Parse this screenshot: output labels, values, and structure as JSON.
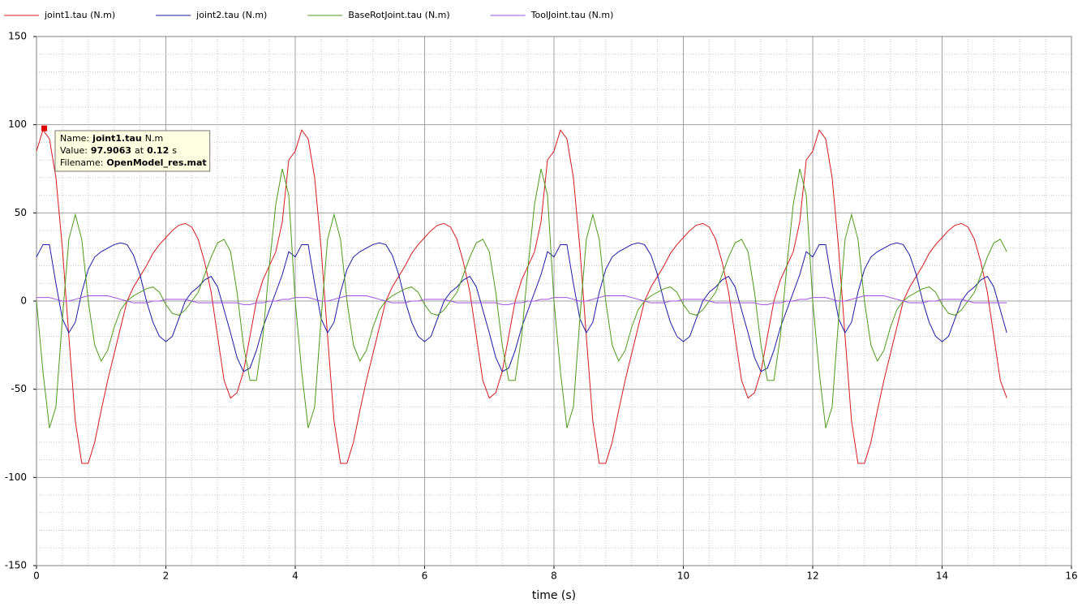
{
  "chart_data": {
    "type": "line",
    "xlabel": "time (s)",
    "xlim": [
      0,
      16
    ],
    "xticks": [
      0,
      2,
      4,
      6,
      8,
      10,
      12,
      14,
      16
    ],
    "ylim": [
      -150,
      150
    ],
    "yticks": [
      -150,
      -100,
      -50,
      0,
      50,
      100,
      150
    ],
    "grid": true,
    "minor_grid_divisions": 5,
    "legend": "top-left",
    "x": [
      0,
      0.1,
      0.2,
      0.3,
      0.4,
      0.5,
      0.6,
      0.7,
      0.8,
      0.9,
      1,
      1.1,
      1.2,
      1.3,
      1.4,
      1.5,
      1.6,
      1.7,
      1.8,
      1.9,
      2,
      2.1,
      2.2,
      2.3,
      2.4,
      2.5,
      2.6,
      2.7,
      2.8,
      2.9,
      3,
      3.1,
      3.2,
      3.3,
      3.4,
      3.5,
      3.6,
      3.7,
      3.8,
      3.9,
      4,
      4.1,
      4.2,
      4.3,
      4.4,
      4.5,
      4.6,
      4.7,
      4.8,
      4.9,
      5,
      5.1,
      5.2,
      5.3,
      5.4,
      5.5,
      5.6,
      5.7,
      5.8,
      5.9,
      6,
      6.1,
      6.2,
      6.3,
      6.4,
      6.5,
      6.6,
      6.7,
      6.8,
      6.9,
      7,
      7.1,
      7.2,
      7.3,
      7.4,
      7.5,
      7.6,
      7.7,
      7.8,
      7.9,
      8,
      8.1,
      8.2,
      8.3,
      8.4,
      8.5,
      8.6,
      8.7,
      8.8,
      8.9,
      9,
      9.1,
      9.2,
      9.3,
      9.4,
      9.5,
      9.6,
      9.7,
      9.8,
      9.9,
      10,
      10.1,
      10.2,
      10.3,
      10.4,
      10.5,
      10.6,
      10.7,
      10.8,
      10.9,
      11,
      11.1,
      11.2,
      11.3,
      11.4,
      11.5,
      11.6,
      11.7,
      11.8,
      11.9,
      12,
      12.1,
      12.2,
      12.3,
      12.4,
      12.5,
      12.6,
      12.7,
      12.8,
      12.9,
      13,
      13.1,
      13.2,
      13.3,
      13.4,
      13.5,
      13.6,
      13.7,
      13.8,
      13.9,
      14,
      14.1,
      14.2,
      14.3,
      14.4,
      14.5,
      14.6,
      14.7,
      14.8,
      14.9,
      15
    ],
    "series": [
      {
        "name": "joint1.tau (N.m)",
        "color": "#d7191c",
        "values": [
          85,
          97,
          92,
          70,
          30,
          -20,
          -68,
          -92,
          -92,
          -80,
          -62,
          -45,
          -30,
          -15,
          0,
          8,
          14,
          20,
          27,
          32,
          36,
          40,
          43,
          44,
          42,
          35,
          22,
          5,
          -20,
          -45,
          -55,
          -52,
          -40,
          -20,
          0,
          12,
          20,
          28,
          45,
          80,
          85,
          97,
          92,
          70,
          30,
          -20,
          -68,
          -92,
          -92,
          -80,
          -62,
          -45,
          -30,
          -15,
          0,
          8,
          14,
          20,
          27,
          32,
          36,
          40,
          43,
          44,
          42,
          35,
          22,
          5,
          -20,
          -45,
          -55,
          -52,
          -40,
          -20,
          0,
          12,
          20,
          28,
          45,
          80,
          85,
          97,
          92,
          70,
          30,
          -20,
          -68,
          -92,
          -92,
          -80,
          -62,
          -45,
          -30,
          -15,
          0,
          8,
          14,
          20,
          27,
          32,
          36,
          40,
          43,
          44,
          42,
          35,
          22,
          5,
          -20,
          -45,
          -55,
          -52,
          -40,
          -20,
          0,
          12,
          20,
          28,
          45,
          80,
          85,
          97,
          92,
          70,
          30,
          -20,
          -68,
          -92,
          -92,
          -80,
          -62,
          -45,
          -30,
          -15,
          0,
          8,
          14,
          20,
          27,
          32,
          36,
          40,
          43,
          44,
          42,
          35,
          22,
          5,
          -20,
          -45,
          -55
        ]
      },
      {
        "name": "joint2.tau (N.m)",
        "color": "#1a1aa6",
        "values": [
          25,
          32,
          32,
          10,
          -10,
          -18,
          -12,
          5,
          18,
          25,
          28,
          30,
          32,
          33,
          32,
          26,
          15,
          0,
          -12,
          -20,
          -23,
          -20,
          -10,
          0,
          5,
          8,
          12,
          14,
          8,
          -5,
          -18,
          -32,
          -40,
          -38,
          -28,
          -15,
          -5,
          5,
          15,
          28,
          25,
          32,
          32,
          10,
          -10,
          -18,
          -12,
          5,
          18,
          25,
          28,
          30,
          32,
          33,
          32,
          26,
          15,
          0,
          -12,
          -20,
          -23,
          -20,
          -10,
          0,
          5,
          8,
          12,
          14,
          8,
          -5,
          -18,
          -32,
          -40,
          -38,
          -28,
          -15,
          -5,
          5,
          15,
          28,
          25,
          32,
          32,
          10,
          -10,
          -18,
          -12,
          5,
          18,
          25,
          28,
          30,
          32,
          33,
          32,
          26,
          15,
          0,
          -12,
          -20,
          -23,
          -20,
          -10,
          0,
          5,
          8,
          12,
          14,
          8,
          -5,
          -18,
          -32,
          -40,
          -38,
          -28,
          -15,
          -5,
          5,
          15,
          28,
          25,
          32,
          32,
          10,
          -10,
          -18,
          -12,
          5,
          18,
          25,
          28,
          30,
          32,
          33,
          32,
          26,
          15,
          0,
          -12,
          -20,
          -23,
          -20,
          -10,
          0,
          5,
          8,
          12,
          14,
          8,
          -5,
          -18
        ]
      },
      {
        "name": "BaseRotJoint.tau (N.m)",
        "color": "#4d9a1a",
        "values": [
          0,
          -40,
          -72,
          -60,
          -10,
          35,
          49,
          35,
          0,
          -25,
          -34,
          -28,
          -15,
          -5,
          0,
          3,
          5,
          7,
          8,
          5,
          -2,
          -7,
          -8,
          -5,
          0,
          5,
          15,
          25,
          33,
          35,
          28,
          5,
          -25,
          -45,
          -45,
          -20,
          20,
          55,
          75,
          60,
          0,
          -40,
          -72,
          -60,
          -10,
          35,
          49,
          35,
          0,
          -25,
          -34,
          -28,
          -15,
          -5,
          0,
          3,
          5,
          7,
          8,
          5,
          -2,
          -7,
          -8,
          -5,
          0,
          5,
          15,
          25,
          33,
          35,
          28,
          5,
          -25,
          -45,
          -45,
          -20,
          20,
          55,
          75,
          60,
          0,
          -40,
          -72,
          -60,
          -10,
          35,
          49,
          35,
          0,
          -25,
          -34,
          -28,
          -15,
          -5,
          0,
          3,
          5,
          7,
          8,
          5,
          -2,
          -7,
          -8,
          -5,
          0,
          5,
          15,
          25,
          33,
          35,
          28,
          5,
          -25,
          -45,
          -45,
          -20,
          20,
          55,
          75,
          60,
          0,
          -40,
          -72,
          -60,
          -10,
          35,
          49,
          35,
          0,
          -25,
          -34,
          -28,
          -15,
          -5,
          0,
          3,
          5,
          7,
          8,
          5,
          -2,
          -7,
          -8,
          -5,
          0,
          5,
          15,
          25,
          33,
          35,
          28
        ]
      },
      {
        "name": "ToolJoint.tau (N.m)",
        "color": "#a050e0",
        "values": [
          2,
          2,
          2,
          1,
          0,
          0,
          1,
          2,
          3,
          3,
          3,
          3,
          2,
          1,
          0,
          -1,
          -1,
          -1,
          0,
          0,
          1,
          1,
          1,
          1,
          0,
          -1,
          -1,
          -1,
          -1,
          -1,
          -1,
          -1,
          -2,
          -2,
          -1,
          -1,
          0,
          0,
          1,
          1,
          2,
          2,
          2,
          1,
          0,
          0,
          1,
          2,
          3,
          3,
          3,
          3,
          2,
          1,
          0,
          -1,
          -1,
          -1,
          0,
          0,
          1,
          1,
          1,
          1,
          0,
          -1,
          -1,
          -1,
          -1,
          -1,
          -1,
          -1,
          -2,
          -2,
          -1,
          -1,
          0,
          0,
          1,
          1,
          2,
          2,
          2,
          1,
          0,
          0,
          1,
          2,
          3,
          3,
          3,
          3,
          2,
          1,
          0,
          -1,
          -1,
          -1,
          0,
          0,
          1,
          1,
          1,
          1,
          0,
          -1,
          -1,
          -1,
          -1,
          -1,
          -1,
          -1,
          -2,
          -2,
          -1,
          -1,
          0,
          0,
          1,
          1,
          2,
          2,
          2,
          1,
          0,
          0,
          1,
          2,
          3,
          3,
          3,
          3,
          2,
          1,
          0,
          -1,
          -1,
          -1,
          0,
          0,
          1,
          1,
          1,
          1,
          0,
          -1,
          -1,
          -1,
          -1,
          -1,
          -1
        ]
      }
    ],
    "tooltip": {
      "name_label": "Name:",
      "name": "joint1.tau",
      "unit": "N.m",
      "value_label": "Value:",
      "value": 97.9063,
      "at_label": "at",
      "time": 0.12,
      "time_unit": "s",
      "filename_label": "Filename:",
      "filename": "OpenModel_res.mat",
      "color": "#e00000"
    }
  }
}
